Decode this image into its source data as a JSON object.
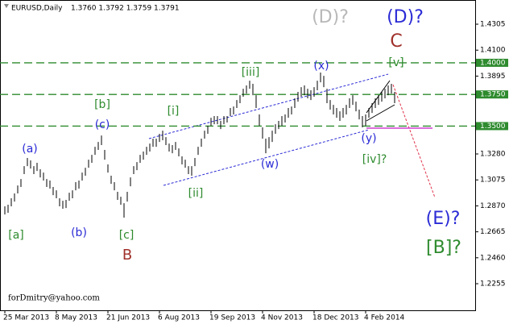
{
  "chart_data": {
    "type": "range_bar",
    "title": "EURUSD,Daily",
    "ohlc_info": "1.3760 1.3792 1.3759 1.3791",
    "watermark": "forDmitry@yahoo.com",
    "bar_color": "#000000",
    "high": [
      1.2866,
      1.2879,
      1.293,
      1.2968,
      1.3031,
      1.3082,
      1.3184,
      1.3248,
      1.3229,
      1.3184,
      1.321,
      1.3159,
      1.3133,
      1.3082,
      1.307,
      1.3019,
      1.2993,
      1.293,
      1.291,
      1.2917,
      1.2974,
      1.2993,
      1.3057,
      1.307,
      1.3133,
      1.3171,
      1.3235,
      1.3273,
      1.3337,
      1.3375,
      1.3426,
      1.3312,
      1.3197,
      1.3108,
      1.3057,
      1.2981,
      1.2942,
      1.2891,
      1.2981,
      1.3095,
      1.3184,
      1.3216,
      1.3273,
      1.3299,
      1.3337,
      1.3362,
      1.3401,
      1.3401,
      1.3439,
      1.3464,
      1.3413,
      1.3362,
      1.335,
      1.3375,
      1.3324,
      1.3261,
      1.3235,
      1.3184,
      1.3184,
      1.3248,
      1.3337,
      1.3401,
      1.3464,
      1.3503,
      1.3566,
      1.3579,
      1.3579,
      1.3541,
      1.3579,
      1.3579,
      1.3643,
      1.3655,
      1.3706,
      1.3744,
      1.3795,
      1.3821,
      1.3859,
      1.3834,
      1.3744,
      1.3592,
      1.349,
      1.3401,
      1.3413,
      1.3464,
      1.3515,
      1.3541,
      1.3579,
      1.3592,
      1.3643,
      1.3655,
      1.3719,
      1.377,
      1.3808,
      1.3821,
      1.3795,
      1.3783,
      1.3808,
      1.3859,
      1.3923,
      1.3897,
      1.3795,
      1.3706,
      1.3668,
      1.3643,
      1.3617,
      1.3643,
      1.3668,
      1.3719,
      1.3744,
      1.3693,
      1.363,
      1.3579,
      1.3592,
      1.3643,
      1.3681,
      1.3719,
      1.3744,
      1.377,
      1.3795,
      1.3821,
      1.3834,
      1.377
    ],
    "low": [
      1.2802,
      1.2815,
      1.2866,
      1.2904,
      1.2968,
      1.3019,
      1.3121,
      1.3184,
      1.3165,
      1.3121,
      1.3146,
      1.3095,
      1.307,
      1.3019,
      1.3006,
      1.2955,
      1.293,
      1.2866,
      1.2847,
      1.2853,
      1.291,
      1.293,
      1.2993,
      1.3006,
      1.307,
      1.3108,
      1.3171,
      1.321,
      1.3273,
      1.3312,
      1.335,
      1.3235,
      1.3133,
      1.3044,
      1.2993,
      1.2917,
      1.2879,
      1.2777,
      1.2904,
      1.3025,
      1.3121,
      1.3152,
      1.321,
      1.3235,
      1.3273,
      1.3299,
      1.3337,
      1.3337,
      1.3375,
      1.3388,
      1.335,
      1.3299,
      1.3286,
      1.3312,
      1.3261,
      1.3197,
      1.3171,
      1.3121,
      1.3108,
      1.3184,
      1.3273,
      1.3337,
      1.3401,
      1.3439,
      1.3503,
      1.3515,
      1.3515,
      1.3477,
      1.3515,
      1.3528,
      1.3579,
      1.3592,
      1.3643,
      1.3681,
      1.3732,
      1.3757,
      1.3795,
      1.3744,
      1.3643,
      1.3503,
      1.3401,
      1.3286,
      1.3324,
      1.3375,
      1.3439,
      1.3477,
      1.3503,
      1.3528,
      1.3566,
      1.3592,
      1.3643,
      1.3693,
      1.3732,
      1.3744,
      1.3719,
      1.3706,
      1.3732,
      1.3783,
      1.3846,
      1.3808,
      1.3681,
      1.363,
      1.3592,
      1.3566,
      1.3541,
      1.3566,
      1.3592,
      1.3643,
      1.3668,
      1.3617,
      1.3553,
      1.349,
      1.3503,
      1.3566,
      1.3604,
      1.3643,
      1.3668,
      1.3693,
      1.3719,
      1.3744,
      1.3757,
      1.3681
    ],
    "xlim": [
      -1.5,
      146
    ],
    "xticks": [
      {
        "value": 0,
        "label": "25 Mar 2013"
      },
      {
        "value": 16,
        "label": "8 May 2013"
      },
      {
        "value": 32,
        "label": "21 Jun 2013"
      },
      {
        "value": 48,
        "label": "6 Aug 2013"
      },
      {
        "value": 64,
        "label": "19 Sep 2013"
      },
      {
        "value": 80,
        "label": "4 Nov 2013"
      },
      {
        "value": 96,
        "label": "18 Dec 2013"
      },
      {
        "value": 112,
        "label": "4 Feb 2014"
      }
    ],
    "ylim": [
      1.2045,
      1.4477
    ],
    "yticks": [
      1.4305,
      {
        "value": 1.41,
        "label": "1.4100"
      },
      1.3895,
      {
        "value": 1.328,
        "label": "1.3280"
      },
      1.3075,
      {
        "value": 1.287,
        "label": "1.2870"
      },
      1.2665,
      {
        "value": 1.246,
        "label": "1.2460"
      },
      1.2255
    ],
    "levels": [
      {
        "value": 1.4,
        "label": "1.4000"
      },
      {
        "value": 1.375,
        "label": "1.3750"
      },
      {
        "value": 1.35,
        "label": "1.3500"
      }
    ],
    "level_color": "#2e8b2e",
    "annotations": [
      {
        "text": "(a)",
        "color": "#2b2bd6"
      },
      {
        "text": "[a]",
        "color": "#2e8b2e"
      },
      {
        "text": "(b)",
        "color": "#2b2bd6"
      },
      {
        "text": "[b]",
        "color": "#2e8b2e"
      },
      {
        "text": "(c)",
        "color": "#2b2bd6"
      },
      {
        "text": "[c]",
        "color": "#2e8b2e"
      },
      {
        "text": "B",
        "color": "#a0302a"
      },
      {
        "text": "[i]",
        "color": "#2e8b2e"
      },
      {
        "text": "[ii]",
        "color": "#2e8b2e"
      },
      {
        "text": "[iii]",
        "color": "#2e8b2e"
      },
      {
        "text": "(w)",
        "color": "#2b2bd6"
      },
      {
        "text": "(x)",
        "color": "#2b2bd6"
      },
      {
        "text": "(y)",
        "color": "#2b2bd6"
      },
      {
        "text": "[iv]?",
        "color": "#2e8b2e"
      },
      {
        "text": "[v]",
        "color": "#2e8b2e"
      },
      {
        "text": "(D)?",
        "color": "#b8b8b8"
      },
      {
        "text": "(D)?",
        "color": "#2b2bd6"
      },
      {
        "text": "C",
        "color": "#a0302a"
      },
      {
        "text": "(E)?",
        "color": "#2b2bd6"
      },
      {
        "text": "[B]?",
        "color": "#2e8b2e"
      }
    ]
  }
}
